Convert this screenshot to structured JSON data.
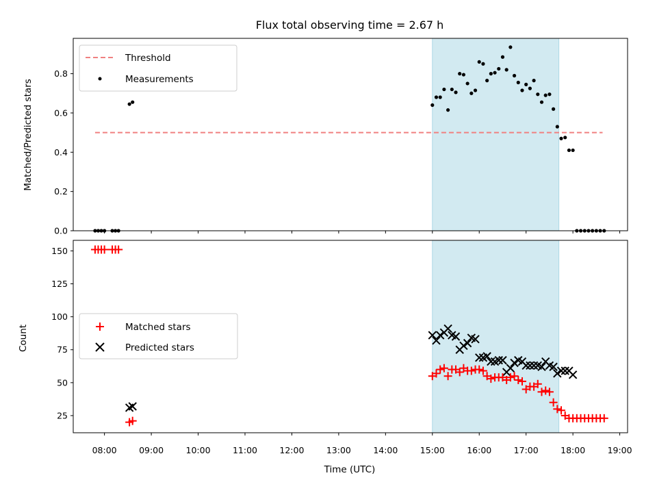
{
  "title": "Flux total observing time = 2.67 h",
  "colors": {
    "threshold": "#f08080",
    "measurement": "#000000",
    "matched": "#ff0000",
    "predicted": "#000000",
    "shade": "#add8e6"
  },
  "chart_data": [
    {
      "type": "scatter",
      "panel": "top",
      "ylabel": "Matched/Predicted stars",
      "xlim": [
        "07:20",
        "19:10"
      ],
      "ylim": [
        0,
        0.98
      ],
      "yticks": [
        "0.0",
        "0.2",
        "0.4",
        "0.6",
        "0.8"
      ],
      "shaded_region": [
        "15:00",
        "17:42"
      ],
      "legend": {
        "placement": "top-left",
        "entries": [
          "Threshold",
          "Measurements"
        ]
      },
      "series": [
        {
          "name": "Threshold",
          "kind": "dashed-line",
          "x": [
            "07:48",
            "18:38"
          ],
          "y": [
            0.5,
            0.5
          ]
        },
        {
          "name": "Measurements",
          "kind": "points",
          "x": [
            "07:48",
            "07:52",
            "07:56",
            "08:00",
            "08:10",
            "08:14",
            "08:18",
            "08:32",
            "08:36",
            "15:00",
            "15:05",
            "15:10",
            "15:15",
            "15:20",
            "15:25",
            "15:30",
            "15:35",
            "15:40",
            "15:45",
            "15:50",
            "15:55",
            "16:00",
            "16:05",
            "16:10",
            "16:15",
            "16:20",
            "16:25",
            "16:30",
            "16:35",
            "16:40",
            "16:45",
            "16:50",
            "16:55",
            "17:00",
            "17:05",
            "17:10",
            "17:15",
            "17:20",
            "17:25",
            "17:30",
            "17:35",
            "17:40",
            "17:45",
            "17:50",
            "17:55",
            "18:00",
            "18:05",
            "18:10",
            "18:15",
            "18:20",
            "18:25",
            "18:30",
            "18:35",
            "18:40"
          ],
          "y": [
            0,
            0,
            0,
            0,
            0,
            0,
            0,
            0.645,
            0.655,
            0.64,
            0.68,
            0.68,
            0.72,
            0.615,
            0.72,
            0.705,
            0.8,
            0.795,
            0.75,
            0.7,
            0.715,
            0.86,
            0.85,
            0.765,
            0.8,
            0.805,
            0.825,
            0.885,
            0.82,
            0.935,
            0.79,
            0.755,
            0.715,
            0.745,
            0.725,
            0.765,
            0.695,
            0.655,
            0.69,
            0.695,
            0.62,
            0.53,
            0.47,
            0.475,
            0.41,
            0.41,
            0,
            0,
            0,
            0,
            0,
            0,
            0,
            0
          ]
        }
      ]
    },
    {
      "type": "scatter",
      "panel": "bottom",
      "xlabel": "Time (UTC)",
      "ylabel": "Count",
      "xlim": [
        "07:20",
        "19:10"
      ],
      "ylim": [
        12,
        158
      ],
      "yticks": [
        "25",
        "50",
        "75",
        "100",
        "125",
        "150"
      ],
      "xticks": [
        "08:00",
        "09:00",
        "10:00",
        "11:00",
        "12:00",
        "13:00",
        "14:00",
        "15:00",
        "16:00",
        "17:00",
        "18:00",
        "19:00"
      ],
      "shaded_region": [
        "15:00",
        "17:42"
      ],
      "legend": {
        "placement": "center-left",
        "entries": [
          "Matched stars",
          "Predicted stars"
        ]
      },
      "series": [
        {
          "name": "Matched stars",
          "marker": "+",
          "x": [
            "07:48",
            "07:52",
            "07:56",
            "08:00",
            "08:10",
            "08:14",
            "08:18",
            "08:32",
            "08:36",
            "15:00",
            "15:05",
            "15:10",
            "15:15",
            "15:20",
            "15:25",
            "15:30",
            "15:35",
            "15:40",
            "15:45",
            "15:50",
            "15:55",
            "16:00",
            "16:05",
            "16:10",
            "16:15",
            "16:20",
            "16:25",
            "16:30",
            "16:35",
            "16:40",
            "16:45",
            "16:50",
            "16:55",
            "17:00",
            "17:05",
            "17:10",
            "17:15",
            "17:20",
            "17:25",
            "17:30",
            "17:35",
            "17:40",
            "17:45",
            "17:50",
            "17:55",
            "18:00",
            "18:05",
            "18:10",
            "18:15",
            "18:20",
            "18:25",
            "18:30",
            "18:35",
            "18:40"
          ],
          "y": [
            151,
            151,
            151,
            151,
            151,
            151,
            151,
            20,
            21,
            55,
            57,
            60,
            61,
            55,
            60,
            60,
            58,
            61,
            59,
            59,
            60,
            60,
            59,
            55,
            53,
            54,
            54,
            54,
            52,
            54,
            55,
            52,
            51,
            45,
            47,
            47,
            49,
            43,
            44,
            43,
            35,
            30,
            29,
            25,
            23,
            23,
            23,
            23,
            23,
            23,
            23,
            23,
            23,
            23
          ]
        },
        {
          "name": "Predicted stars",
          "marker": "x",
          "x": [
            "08:32",
            "08:36",
            "15:00",
            "15:05",
            "15:10",
            "15:15",
            "15:20",
            "15:25",
            "15:30",
            "15:35",
            "15:40",
            "15:45",
            "15:50",
            "15:55",
            "16:00",
            "16:05",
            "16:10",
            "16:15",
            "16:20",
            "16:25",
            "16:30",
            "16:35",
            "16:40",
            "16:45",
            "16:50",
            "16:55",
            "17:00",
            "17:05",
            "17:10",
            "17:15",
            "17:20",
            "17:25",
            "17:30",
            "17:35",
            "17:40",
            "17:45",
            "17:50",
            "17:55",
            "18:00"
          ],
          "y": [
            31,
            32,
            86,
            82,
            86,
            88,
            91,
            86,
            85,
            75,
            78,
            80,
            84,
            83,
            69,
            69,
            70,
            66,
            66,
            67,
            67,
            58,
            61,
            65,
            67,
            66,
            63,
            63,
            63,
            63,
            62,
            66,
            63,
            62,
            57,
            59,
            59,
            59,
            56
          ]
        }
      ]
    }
  ]
}
